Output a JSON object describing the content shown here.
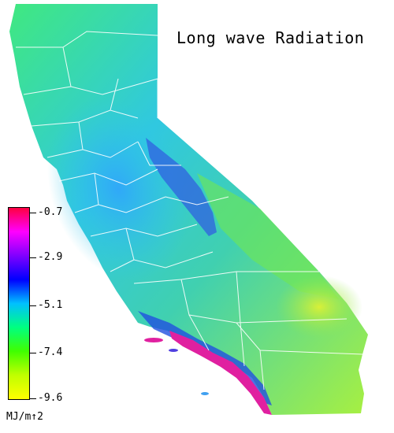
{
  "title": "Long wave Radiation",
  "legend": {
    "ticks": [
      "-0.7",
      "-2.9",
      "-5.1",
      "-7.4",
      "-9.6"
    ],
    "unit": "MJ/m↑2",
    "colors": [
      "#ff0040",
      "#ff00ff",
      "#8000ff",
      "#0000ff",
      "#00c0ff",
      "#00ff80",
      "#40ff00",
      "#c0ff00",
      "#ffff00"
    ]
  },
  "map": {
    "region": "California",
    "colors": {
      "north": "#40e880",
      "valley": "#30b8f0",
      "sierra": "#3050e0",
      "east": "#70e850",
      "desert": "#c8f040",
      "coast_south": "#e02090",
      "boundary": "#ffffff"
    }
  }
}
